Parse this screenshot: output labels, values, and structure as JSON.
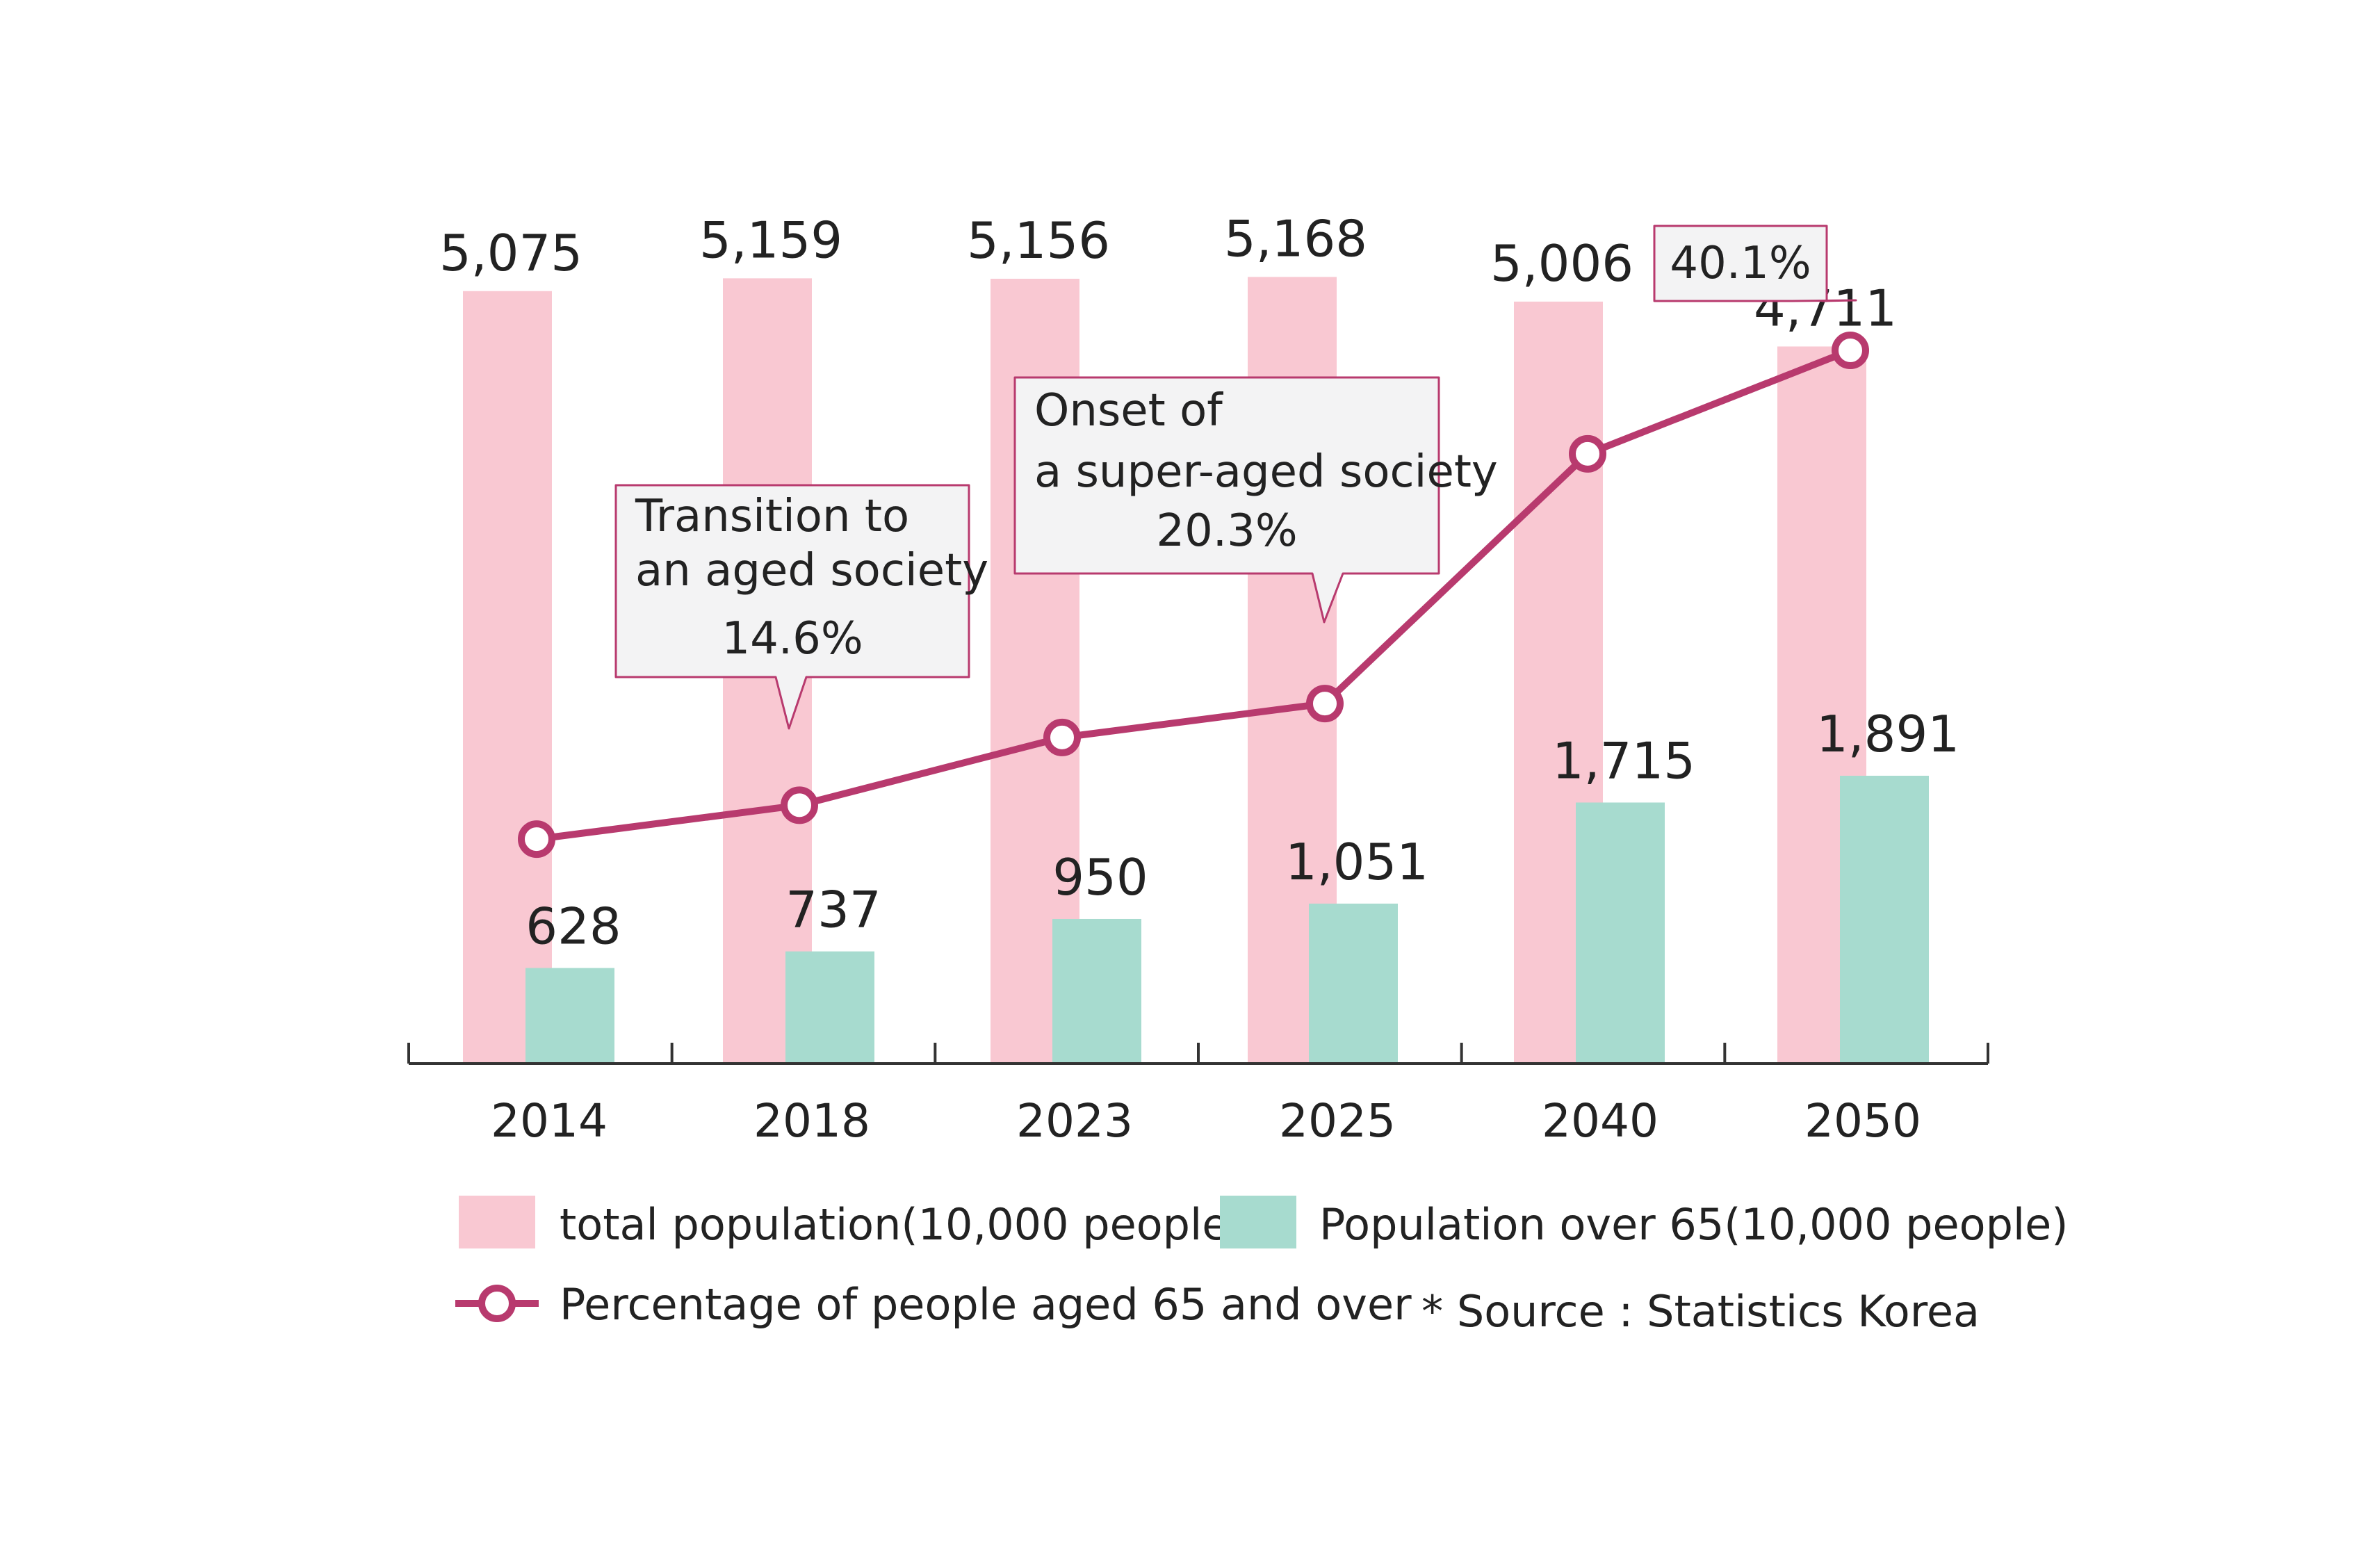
{
  "colors": {
    "total": "#f9c8d2",
    "over65": "#a7dbcf",
    "line": "#b83a6e",
    "axis": "#333333",
    "callout_fill": "#f3f3f4"
  },
  "chart_data": {
    "type": "bar",
    "categories": [
      "2014",
      "2018",
      "2023",
      "2025",
      "2040",
      "2050"
    ],
    "series": [
      {
        "name": "total population(10,000 people)",
        "type": "bar",
        "values": [
          5075,
          5159,
          5156,
          5168,
          5006,
          4711
        ],
        "labels": [
          "5,075",
          "5,159",
          "5,156",
          "5,168",
          "5,006",
          "4,711"
        ]
      },
      {
        "name": "Population over 65(10,000 people)",
        "type": "bar",
        "values": [
          628,
          737,
          950,
          1051,
          1715,
          1891
        ],
        "labels": [
          "628",
          "737",
          "950",
          "1,051",
          "1,715",
          "1,891"
        ]
      },
      {
        "name": "Percentage of people aged 65 and over",
        "type": "line",
        "values": [
          12.7,
          14.6,
          18.4,
          20.3,
          34.3,
          40.1
        ]
      }
    ],
    "ylim": [
      0,
      5800
    ],
    "line_ylim": [
      0,
      50
    ],
    "grid": false,
    "legend_position": "bottom",
    "annotations": [
      {
        "index": 1,
        "lines": [
          "Transition to",
          "an aged society",
          "14.6%"
        ]
      },
      {
        "index": 3,
        "lines": [
          "Onset of",
          "a super-aged society",
          "20.3%"
        ]
      },
      {
        "index": 5,
        "lines": [
          "40.1%"
        ]
      }
    ],
    "source": "* Source : Statistics Korea"
  }
}
